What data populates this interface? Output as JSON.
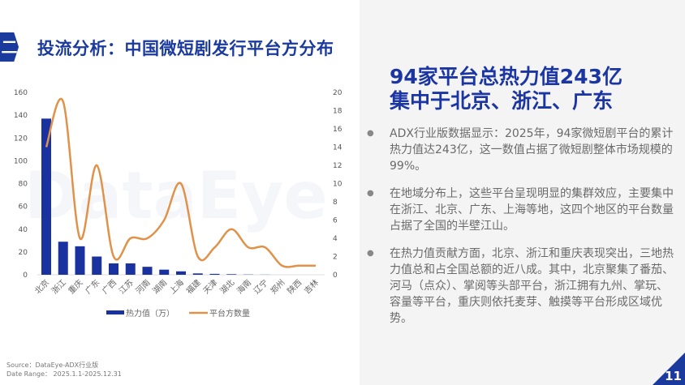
{
  "header": {
    "badge": "二",
    "title": "投流分析：中国微短剧发行平台方分布"
  },
  "watermark": "DataEye",
  "panel": {
    "heading_lines": [
      "94家平台总热力值243亿",
      "集中于北京、浙江、广东"
    ],
    "bullets": [
      "ADX行业版数据显示：2025年，94家微短剧平台的累计热力值达243亿，这一数值占据了微短剧整体市场规模的99%。",
      "在地域分布上，这些平台呈现明显的集群效应，主要集中在浙江、北京、广东、上海等地，这四个地区的平台数量占据了全国的半壁江山。",
      "在热力值贡献方面，北京、浙江和重庆表现突出，三地热力值总和占全国总额的近八成。其中，北京聚集了番茄、河马（点众）、掌阅等头部平台，浙江拥有九州、掌玩、容量等平台，重庆则依托麦芽、触摸等平台形成区域优势。"
    ]
  },
  "footer": {
    "source": "Source：DataEye-ADX行业版",
    "date_range": "Date Range： 2025.1.1-2025.12.31",
    "page": "11"
  },
  "chart_data": {
    "type": "bar+line",
    "categories": [
      "北京",
      "浙江",
      "重庆",
      "广东",
      "广西",
      "江苏",
      "河南",
      "湖南",
      "上海",
      "福建",
      "天津",
      "湖北",
      "海南",
      "辽宁",
      "郑州",
      "陕西",
      "吉林"
    ],
    "series": [
      {
        "name": "热力值（万）",
        "type": "bar",
        "axis": "left",
        "color": "#1a32a0",
        "values": [
          137,
          29,
          25,
          16,
          10,
          10,
          7,
          4.5,
          3,
          1.2,
          0.8,
          0.5,
          0.2,
          0.1,
          0,
          0,
          0
        ]
      },
      {
        "name": "平台方数量",
        "type": "line",
        "axis": "right",
        "smooth": true,
        "color": "#e0924a",
        "values": [
          14,
          19,
          4,
          12,
          2,
          4,
          4,
          6,
          10,
          2,
          3,
          5,
          3,
          3,
          1,
          1,
          1
        ]
      }
    ],
    "y_left": {
      "range": [
        0,
        160
      ],
      "ticks": [
        "0",
        "20",
        "40",
        "60",
        "80",
        "100",
        "120",
        "140",
        "160"
      ]
    },
    "y_right": {
      "range": [
        0,
        20
      ],
      "ticks": [
        "0",
        "2",
        "4",
        "6",
        "8",
        "10",
        "12",
        "14",
        "16",
        "18",
        "20"
      ]
    },
    "grid": false,
    "legend": "bottom"
  }
}
